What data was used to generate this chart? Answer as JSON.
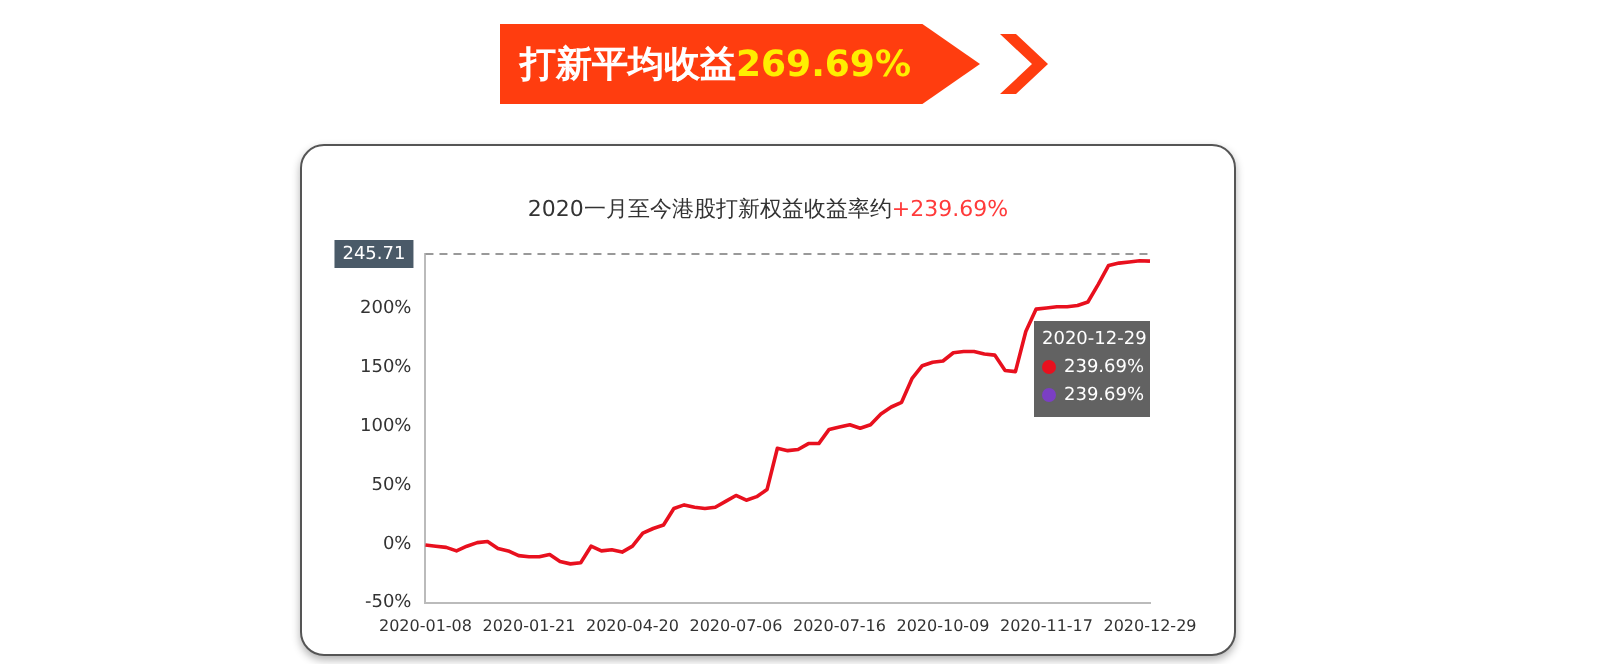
{
  "chart_data": {
    "type": "line",
    "title": "打新平均收益269.69%",
    "subtitle": "2020一月至今港股打新权益收益率约+239.69%",
    "categories": [
      "2020-01-08",
      null,
      null,
      null,
      null,
      null,
      null,
      null,
      null,
      null,
      "2020-01-21",
      null,
      null,
      null,
      null,
      null,
      null,
      null,
      null,
      null,
      "2020-04-20",
      null,
      null,
      null,
      null,
      null,
      null,
      null,
      null,
      null,
      "2020-07-06",
      null,
      null,
      null,
      null,
      null,
      null,
      null,
      null,
      null,
      "2020-07-16",
      null,
      null,
      null,
      null,
      null,
      null,
      null,
      null,
      null,
      "2020-10-09",
      null,
      null,
      null,
      null,
      null,
      null,
      null,
      null,
      null,
      "2020-11-17",
      null,
      null,
      null,
      null,
      null,
      null,
      null,
      null,
      null,
      "2020-12-29"
    ],
    "series": [
      {
        "color": "#e8101e",
        "values": [
          -1,
          -2,
          -3,
          -6,
          -2,
          1,
          2,
          -4,
          -6,
          -10,
          -11,
          -11,
          -9,
          -15,
          -17,
          -16,
          -2,
          -6,
          -5,
          -7,
          -2,
          9,
          13,
          16,
          30,
          33,
          31,
          30,
          31,
          36,
          41,
          37,
          40,
          46,
          81,
          79,
          80,
          85,
          85,
          97,
          99,
          101,
          98,
          101,
          110,
          116,
          120,
          140,
          151,
          154,
          155,
          162,
          163,
          163,
          161,
          160,
          147,
          146,
          180,
          199,
          200,
          201,
          201,
          202,
          205,
          220,
          236,
          238,
          239,
          240,
          239.69
        ]
      }
    ],
    "ylim": [
      -50,
      245.71
    ],
    "yticks": [
      {
        "value": -50,
        "label": "-50%"
      },
      {
        "value": 0,
        "label": "0%"
      },
      {
        "value": 50,
        "label": "50%"
      },
      {
        "value": 100,
        "label": "100%"
      },
      {
        "value": 150,
        "label": "150%"
      },
      {
        "value": 200,
        "label": "200%"
      }
    ],
    "ref_lines": [
      {
        "axis": "y",
        "value": 245.71,
        "label": "245.71",
        "color": "#999999",
        "line_style": "dashed"
      }
    ],
    "annotations": [
      "2020-12-29",
      "239.69%",
      "239.69%"
    ],
    "grid": false,
    "legend": false,
    "marker": "none",
    "line_style": "solid"
  }
}
